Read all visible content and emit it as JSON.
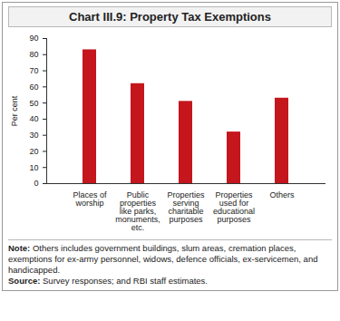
{
  "chart_data": {
    "type": "bar",
    "title": "Chart III.9: Property Tax Exemptions",
    "categories": [
      "Places of worship",
      "Public properties like parks, monuments, etc.",
      "Properties serving charitable purposes",
      "Properties used for educational purposes",
      "Others"
    ],
    "values": [
      83,
      62,
      51,
      32,
      53
    ],
    "color": "#c4161c",
    "ylim": [
      0,
      90
    ],
    "yticks": [
      0,
      10,
      20,
      30,
      40,
      50,
      60,
      70,
      80,
      90
    ],
    "y_label": "Per cent",
    "grid": false,
    "note_label": "Note:",
    "note": "Others includes government buildings, slum areas, cremation places, exemptions for ex-army personnel, widows, defence officials, ex-servicemen, and handicapped.",
    "source_label": "Source:",
    "source": "Survey responses; and RBI staff estimates."
  }
}
